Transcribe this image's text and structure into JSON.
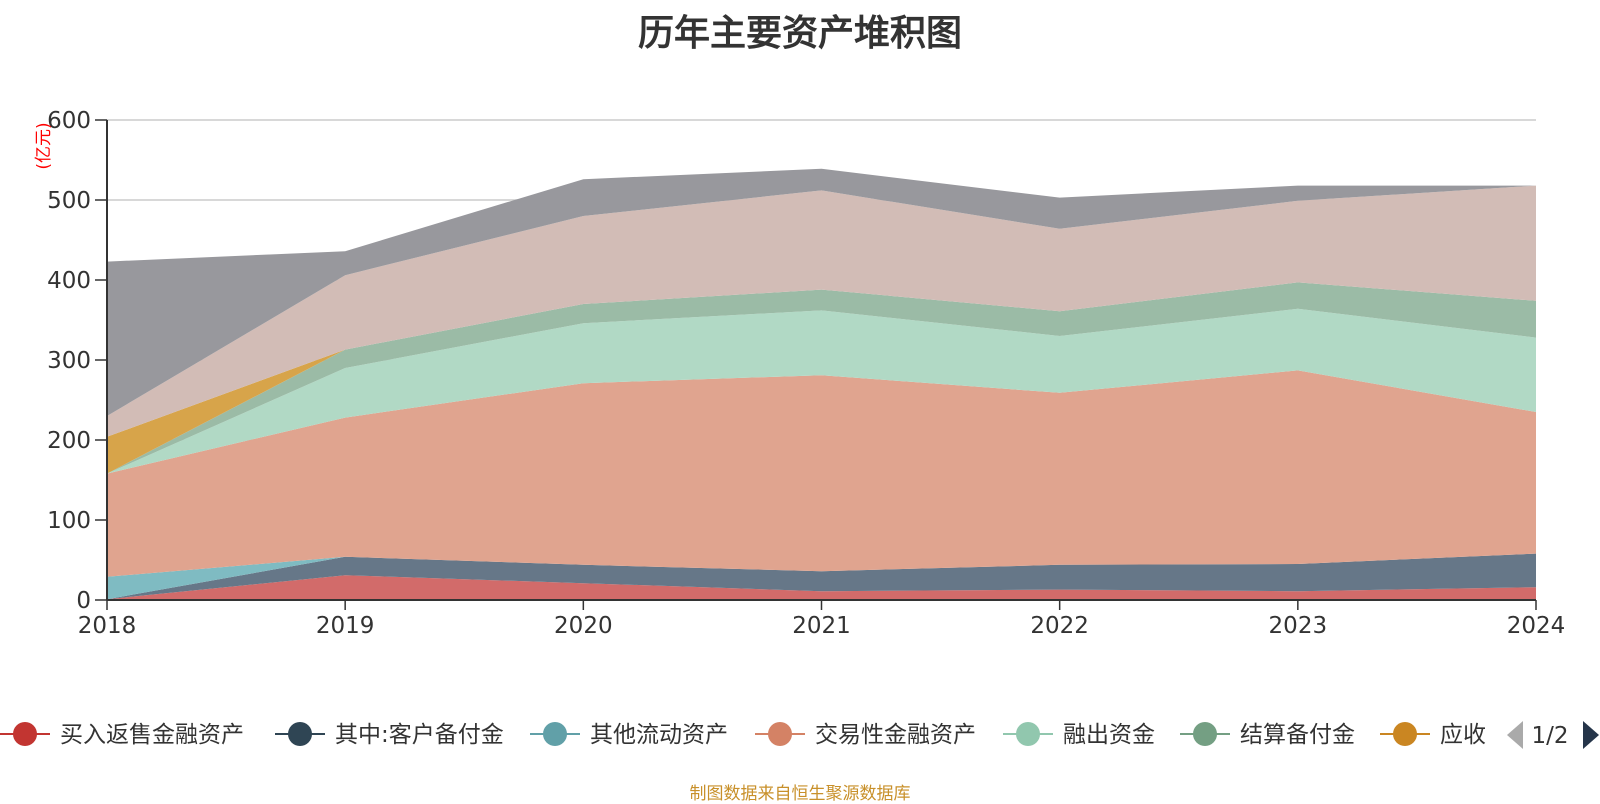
{
  "chart_data": {
    "type": "area",
    "stacked": true,
    "title": "历年主要资产堆积图",
    "ylabel": "(亿元)",
    "xlabel": "",
    "ylim": [
      0,
      600
    ],
    "yticks": [
      0,
      100,
      200,
      300,
      400,
      500,
      600
    ],
    "grid": true,
    "legend_position": "bottom",
    "x": [
      "2018",
      "2019",
      "2020",
      "2021",
      "2022",
      "2023",
      "2024"
    ],
    "series": [
      {
        "name": "买入返售金融资产",
        "color": "#d26b6a",
        "values": [
          1,
          31,
          21,
          11,
          13,
          11,
          16
        ]
      },
      {
        "name": "其中:客户备付金",
        "color": "#667788",
        "values": [
          0,
          23,
          23,
          25,
          31,
          34,
          42
        ]
      },
      {
        "name": "其他流动资产",
        "color": "#7fbbc2",
        "values": [
          28,
          0,
          0,
          0,
          0,
          0,
          0
        ]
      },
      {
        "name": "交易性金融资产",
        "color": "#e0a48f",
        "values": [
          129,
          174,
          227,
          245,
          215,
          242,
          177
        ]
      },
      {
        "name": "融出资金",
        "color": "#b1d9c5",
        "values": [
          0,
          62,
          75,
          81,
          71,
          77,
          93
        ]
      },
      {
        "name": "结算备付金",
        "color": "#9bbba6",
        "values": [
          0,
          23,
          24,
          26,
          31,
          33,
          46
        ]
      },
      {
        "name": "应收",
        "color": "#d7a44a",
        "values": [
          46,
          0,
          0,
          0,
          0,
          0,
          0
        ]
      },
      {
        "name": "",
        "color": "#d2bcb6",
        "values": [
          26,
          93,
          110,
          124,
          103,
          102,
          144
        ]
      },
      {
        "name": "",
        "color": "#98989d",
        "values": [
          193,
          30,
          46,
          27,
          39,
          19,
          0
        ]
      }
    ],
    "legend_page": "1/2"
  },
  "source_note": "制图数据来自恒生聚源数据库",
  "colors": {
    "axis": "#333333",
    "grid": "#cccccc",
    "unit_label": "#ff0000",
    "source_note": "#c8902a",
    "pager": "#25354a",
    "pager_disabled": "#aaaaaa"
  }
}
